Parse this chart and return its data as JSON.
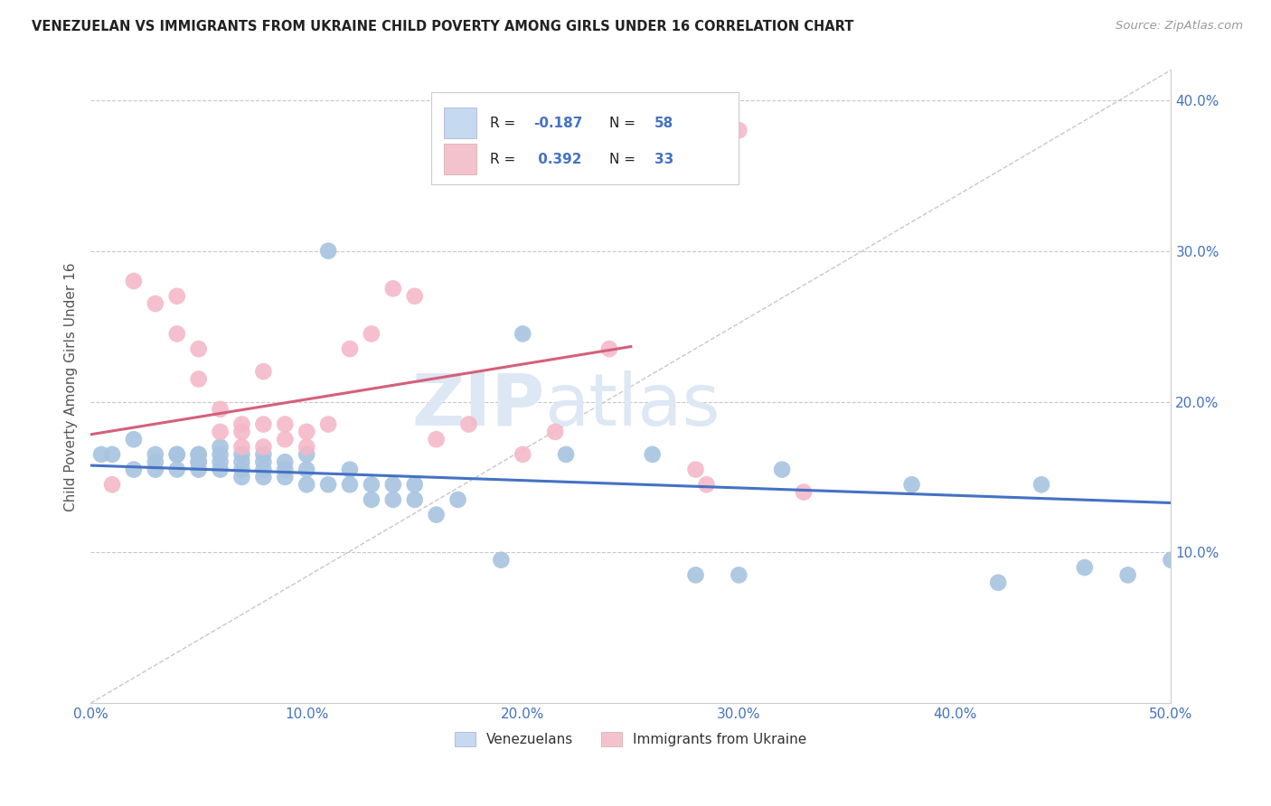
{
  "title": "VENEZUELAN VS IMMIGRANTS FROM UKRAINE CHILD POVERTY AMONG GIRLS UNDER 16 CORRELATION CHART",
  "source": "Source: ZipAtlas.com",
  "ylabel": "Child Poverty Among Girls Under 16",
  "xlim": [
    0.0,
    0.5
  ],
  "ylim": [
    0.0,
    0.42
  ],
  "xticks": [
    0.0,
    0.1,
    0.2,
    0.3,
    0.4,
    0.5
  ],
  "xtick_labels": [
    "0.0%",
    "10.0%",
    "20.0%",
    "30.0%",
    "40.0%",
    "50.0%"
  ],
  "yticks": [
    0.1,
    0.2,
    0.3,
    0.4
  ],
  "ytick_labels": [
    "10.0%",
    "20.0%",
    "30.0%",
    "40.0%"
  ],
  "blue_R": -0.187,
  "blue_N": 58,
  "pink_R": 0.392,
  "pink_N": 33,
  "blue_color": "#a8c4e0",
  "pink_color": "#f4b8c8",
  "blue_line_color": "#4472c4",
  "pink_line_color": "#d4607a",
  "blue_legend_face": "#c5d9f0",
  "pink_legend_face": "#f4c2cc",
  "legend_label_blue": "Venezuelans",
  "legend_label_pink": "Immigrants from Ukraine",
  "dashed_line_color": "#c8c8c8",
  "title_color": "#222222",
  "axis_label_color": "#555555",
  "tick_color": "#4472c4",
  "background_color": "#ffffff",
  "blue_scatter_x": [
    0.005,
    0.01,
    0.02,
    0.02,
    0.03,
    0.03,
    0.03,
    0.04,
    0.04,
    0.04,
    0.05,
    0.05,
    0.05,
    0.05,
    0.05,
    0.06,
    0.06,
    0.06,
    0.06,
    0.07,
    0.07,
    0.07,
    0.07,
    0.08,
    0.08,
    0.08,
    0.08,
    0.09,
    0.09,
    0.09,
    0.1,
    0.1,
    0.1,
    0.11,
    0.11,
    0.12,
    0.12,
    0.13,
    0.13,
    0.14,
    0.14,
    0.15,
    0.15,
    0.16,
    0.17,
    0.19,
    0.2,
    0.22,
    0.26,
    0.28,
    0.3,
    0.32,
    0.38,
    0.42,
    0.44,
    0.46,
    0.48,
    0.5
  ],
  "blue_scatter_y": [
    0.165,
    0.165,
    0.175,
    0.155,
    0.165,
    0.155,
    0.16,
    0.165,
    0.155,
    0.165,
    0.16,
    0.165,
    0.155,
    0.16,
    0.165,
    0.155,
    0.16,
    0.165,
    0.17,
    0.15,
    0.155,
    0.16,
    0.165,
    0.15,
    0.155,
    0.16,
    0.165,
    0.15,
    0.155,
    0.16,
    0.145,
    0.155,
    0.165,
    0.145,
    0.3,
    0.145,
    0.155,
    0.135,
    0.145,
    0.135,
    0.145,
    0.135,
    0.145,
    0.125,
    0.135,
    0.095,
    0.245,
    0.165,
    0.165,
    0.085,
    0.085,
    0.155,
    0.145,
    0.08,
    0.145,
    0.09,
    0.085,
    0.095
  ],
  "pink_scatter_x": [
    0.01,
    0.02,
    0.03,
    0.04,
    0.04,
    0.05,
    0.05,
    0.06,
    0.06,
    0.07,
    0.07,
    0.07,
    0.08,
    0.08,
    0.08,
    0.09,
    0.09,
    0.1,
    0.1,
    0.11,
    0.12,
    0.13,
    0.14,
    0.15,
    0.16,
    0.175,
    0.2,
    0.215,
    0.24,
    0.28,
    0.285,
    0.3,
    0.33
  ],
  "pink_scatter_y": [
    0.145,
    0.28,
    0.265,
    0.27,
    0.245,
    0.235,
    0.215,
    0.195,
    0.18,
    0.18,
    0.17,
    0.185,
    0.185,
    0.17,
    0.22,
    0.185,
    0.175,
    0.17,
    0.18,
    0.185,
    0.235,
    0.245,
    0.275,
    0.27,
    0.175,
    0.185,
    0.165,
    0.18,
    0.235,
    0.155,
    0.145,
    0.38,
    0.14
  ]
}
